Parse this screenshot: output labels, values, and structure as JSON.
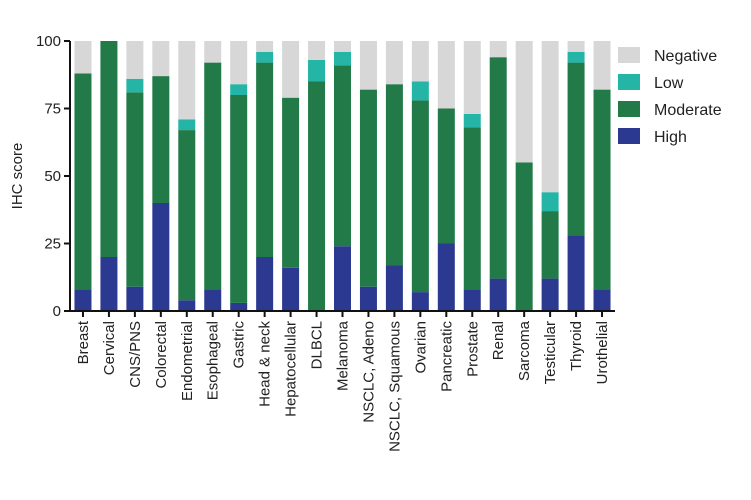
{
  "chart_data": {
    "type": "bar",
    "stacked": true,
    "ylabel": "IHC score",
    "xlabel": "",
    "ylim": [
      0,
      100
    ],
    "yticks": [
      "0",
      "25",
      "50",
      "75",
      "100"
    ],
    "grid": false,
    "legend_placement": "top-right",
    "categories": [
      "Breast",
      "Cervical",
      "CNS/PNS",
      "Colorectal",
      "Endometrial",
      "Esophageal",
      "Gastric",
      "Head & neck",
      "Hepatocellular",
      "DLBCL",
      "Melanoma",
      "NSCLC, Adeno",
      "NSCLC, Squamous",
      "Ovarian",
      "Pancreatic",
      "Prostate",
      "Renal",
      "Sarcoma",
      "Testicular",
      "Thyroid",
      "Urothelial"
    ],
    "series": [
      {
        "name": "High",
        "color": "#2b3990",
        "values": [
          8,
          20,
          9,
          40,
          4,
          8,
          3,
          20,
          16,
          0,
          24,
          9,
          17,
          7,
          25,
          8,
          12,
          0,
          12,
          28,
          8
        ]
      },
      {
        "name": "Moderate",
        "color": "#217a47",
        "values": [
          80,
          80,
          72,
          47,
          63,
          84,
          77,
          72,
          63,
          85,
          67,
          73,
          67,
          71,
          50,
          60,
          82,
          55,
          25,
          64,
          74
        ]
      },
      {
        "name": "Low",
        "color": "#24b5a6",
        "values": [
          0,
          0,
          5,
          0,
          4,
          0,
          4,
          4,
          0,
          8,
          5,
          0,
          0,
          7,
          0,
          5,
          0,
          0,
          7,
          4,
          0
        ]
      },
      {
        "name": "Negative",
        "color": "#d7d7d7",
        "values": [
          12,
          0,
          14,
          13,
          29,
          8,
          16,
          4,
          21,
          7,
          4,
          18,
          16,
          15,
          25,
          27,
          6,
          45,
          56,
          4,
          18
        ]
      }
    ],
    "legend_order": [
      "Negative",
      "Low",
      "Moderate",
      "High"
    ]
  }
}
